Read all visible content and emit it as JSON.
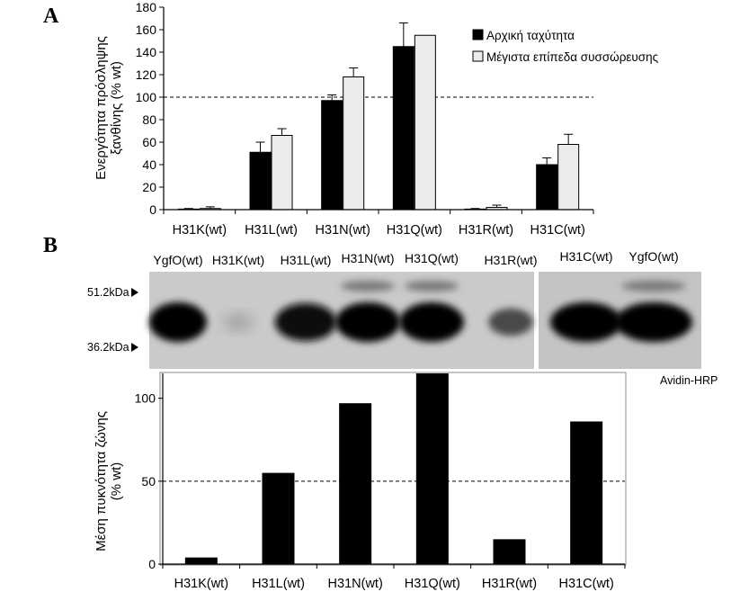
{
  "panels": {
    "a_letter": "A",
    "b_letter": "B"
  },
  "chart_data": [
    {
      "type": "bar",
      "categories": [
        "H31K(wt)",
        "H31L(wt)",
        "H31N(wt)",
        "H31Q(wt)",
        "H31R(wt)",
        "H31C(wt)"
      ],
      "series": [
        {
          "name": "Αρχική ταχύτητα",
          "color": "#000000",
          "values": [
            0.5,
            51,
            97,
            145,
            0.5,
            40
          ],
          "errors": [
            0.5,
            9,
            5,
            21,
            0.5,
            6
          ]
        },
        {
          "name": "Μέγιστα επίπεδα συσσώρευσης",
          "color": "#ebebeb",
          "values": [
            1,
            66,
            118,
            155,
            2,
            58
          ],
          "errors": [
            1.5,
            6,
            8,
            0,
            2,
            9
          ]
        }
      ],
      "ylabel_lines": [
        "Ενεργότητα πρόσληψης",
        "ξανθίνης (% wt)"
      ],
      "ylim": [
        0,
        180
      ],
      "yticks": [
        0,
        20,
        40,
        60,
        80,
        100,
        120,
        140,
        160,
        180
      ],
      "reference_line": 100,
      "legend_position": "top-right",
      "grid": false
    },
    {
      "type": "bar",
      "categories": [
        "H31K(wt)",
        "H31L(wt)",
        "H31N(wt)",
        "H31Q(wt)",
        "H31R(wt)",
        "H31C(wt)"
      ],
      "series": [
        {
          "color": "#000000",
          "values": [
            4,
            55,
            97,
            115,
            15,
            86
          ]
        }
      ],
      "ylabel_lines": [
        "Μέση πυκνότητα ζώνης",
        "(% wt)"
      ],
      "ylim": [
        0,
        115
      ],
      "yticks": [
        0,
        50,
        100
      ],
      "reference_line": 50,
      "grid": false
    }
  ],
  "blot": {
    "lane_labels": [
      "YgfO(wt)",
      "H31K(wt)",
      "H31L(wt)",
      "H31N(wt)",
      "H31Q(wt)",
      "H31R(wt)",
      "H31C(wt)",
      "YgfO(wt)"
    ],
    "marker_top": "51.2kDa",
    "marker_bottom": "36.2kDa",
    "detection_label": "Avidin-HRP",
    "band_intensity": [
      1.0,
      0.15,
      0.95,
      1.0,
      1.0,
      0.6,
      1.0,
      1.0
    ]
  }
}
